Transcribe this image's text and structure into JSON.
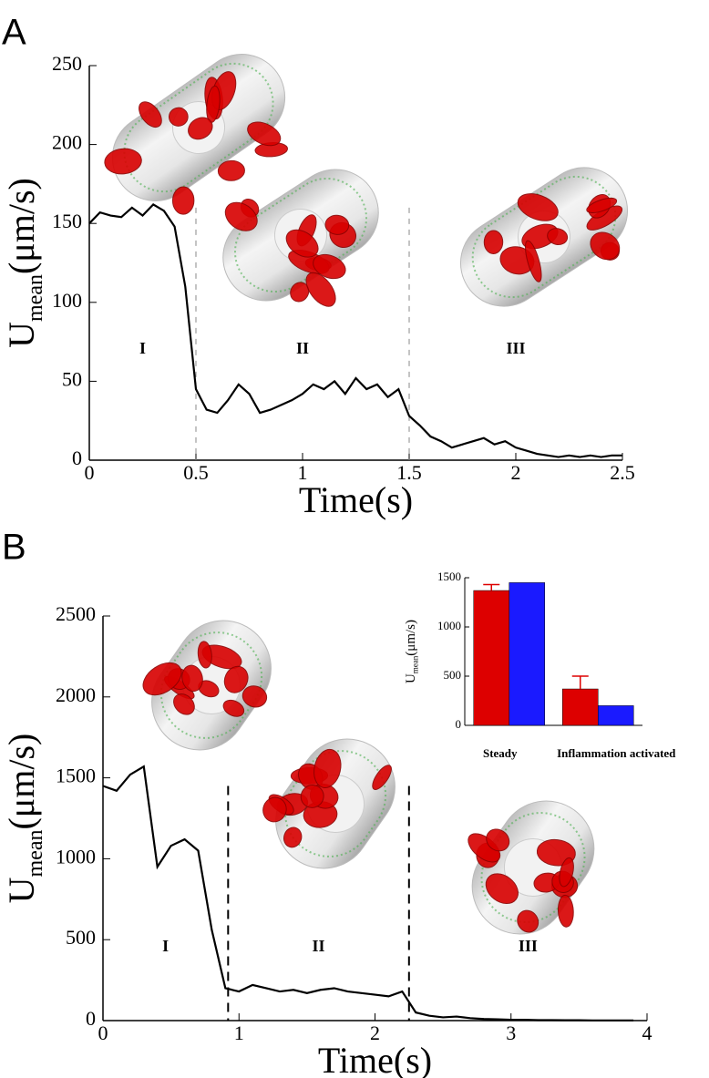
{
  "chart_data": [
    {
      "type": "line",
      "label": "A",
      "xlabel": "Time(s)",
      "ylabel": [
        "U",
        "mean",
        "(μm/s)"
      ],
      "xlim": [
        0,
        2.5
      ],
      "ylim": [
        0,
        250
      ],
      "xticks": [
        0,
        0.5,
        1,
        1.5,
        2,
        2.5
      ],
      "yticks": [
        0,
        50,
        100,
        150,
        200,
        250
      ],
      "dividers": [
        0.5,
        1.5
      ],
      "regions": [
        "I",
        "II",
        "III"
      ],
      "x": [
        0,
        0.05,
        0.1,
        0.15,
        0.2,
        0.25,
        0.3,
        0.35,
        0.4,
        0.45,
        0.5,
        0.55,
        0.6,
        0.65,
        0.7,
        0.75,
        0.8,
        0.85,
        0.9,
        0.95,
        1,
        1.05,
        1.1,
        1.15,
        1.2,
        1.25,
        1.3,
        1.35,
        1.4,
        1.45,
        1.5,
        1.55,
        1.6,
        1.65,
        1.7,
        1.75,
        1.8,
        1.85,
        1.9,
        1.95,
        2,
        2.05,
        2.1,
        2.15,
        2.2,
        2.25,
        2.3,
        2.35,
        2.4,
        2.45,
        2.5
      ],
      "series": [
        {
          "color": "#000000",
          "values": [
            150,
            157,
            155,
            154,
            160,
            155,
            162,
            158,
            148,
            110,
            45,
            32,
            30,
            38,
            48,
            42,
            30,
            32,
            35,
            38,
            42,
            48,
            45,
            50,
            42,
            52,
            45,
            48,
            40,
            45,
            28,
            22,
            15,
            12,
            8,
            10,
            12,
            14,
            10,
            12,
            8,
            6,
            4,
            3,
            2,
            3,
            2,
            3,
            2,
            3,
            3
          ]
        }
      ]
    },
    {
      "type": "line",
      "label": "B",
      "xlabel": "Time(s)",
      "ylabel": [
        "U",
        "mean",
        "(μm/s)"
      ],
      "xlim": [
        0,
        4
      ],
      "ylim": [
        0,
        2500
      ],
      "xticks": [
        0,
        1,
        2,
        3,
        4
      ],
      "yticks": [
        0,
        500,
        1000,
        1500,
        2000,
        2500
      ],
      "dividers": [
        0.92,
        2.25
      ],
      "regions": [
        "I",
        "II",
        "III"
      ],
      "x": [
        0,
        0.1,
        0.2,
        0.3,
        0.4,
        0.5,
        0.6,
        0.7,
        0.8,
        0.9,
        1,
        1.1,
        1.2,
        1.3,
        1.4,
        1.5,
        1.6,
        1.7,
        1.8,
        1.9,
        2,
        2.1,
        2.2,
        2.3,
        2.4,
        2.5,
        2.6,
        2.7,
        2.8,
        2.9,
        3,
        3.1,
        3.2,
        3.3,
        3.4,
        3.5,
        3.6,
        3.7,
        3.8,
        3.9
      ],
      "series": [
        {
          "color": "#000000",
          "values": [
            1450,
            1420,
            1520,
            1570,
            950,
            1080,
            1120,
            1050,
            560,
            200,
            180,
            220,
            200,
            180,
            190,
            170,
            190,
            200,
            180,
            170,
            160,
            150,
            180,
            50,
            30,
            20,
            25,
            15,
            10,
            8,
            5,
            5,
            3,
            3,
            2,
            2,
            1,
            1,
            1,
            1
          ]
        }
      ]
    },
    {
      "type": "bar",
      "ylabel": [
        "U",
        "mean",
        "(μm/s)"
      ],
      "categories": [
        "Steady",
        "Inflammation activated"
      ],
      "ylim": [
        0,
        1500
      ],
      "yticks": [
        0,
        500,
        1000,
        1500
      ],
      "series": [
        {
          "color": "#dd0000",
          "values": [
            1370,
            370
          ],
          "errors": [
            60,
            130
          ]
        },
        {
          "color": "#1a1aff",
          "values": [
            1450,
            200
          ]
        }
      ]
    }
  ]
}
